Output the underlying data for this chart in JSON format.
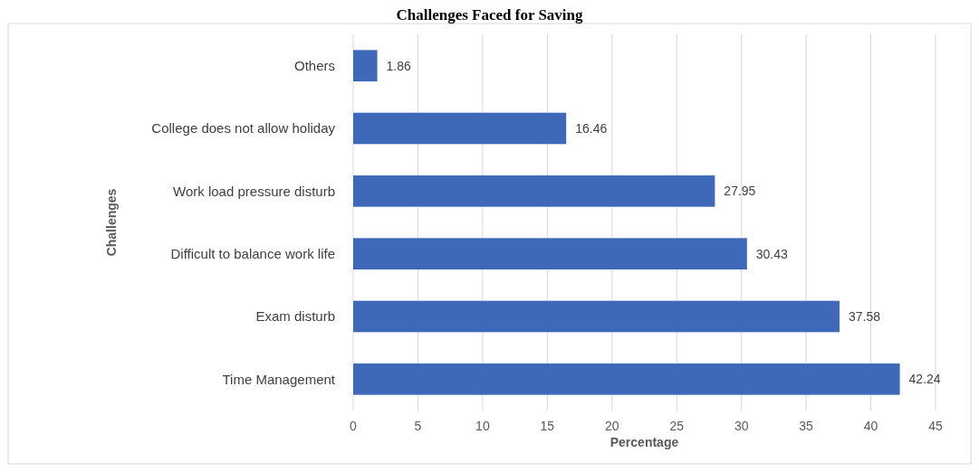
{
  "chart_data": {
    "type": "bar",
    "orientation": "horizontal",
    "title": "Challenges Faced for Saving",
    "xlabel": "Percentage",
    "ylabel": "Challenges",
    "categories": [
      "Others",
      "College does not allow holiday",
      "Work load pressure disturb",
      "Difficult to balance work life",
      "Exam disturb",
      "Time Management"
    ],
    "values": [
      1.86,
      16.46,
      27.95,
      30.43,
      37.58,
      42.24
    ],
    "color": "#3f68b8",
    "xlim": [
      0,
      45
    ],
    "xticks": [
      0,
      5,
      10,
      15,
      20,
      25,
      30,
      35,
      40,
      45
    ],
    "grid": "x",
    "data_labels": true
  }
}
